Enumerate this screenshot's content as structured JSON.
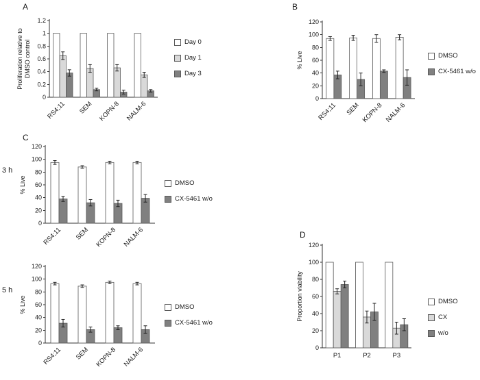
{
  "figure_labels": {
    "panel_a": "A",
    "panel_b": "B",
    "panel_c": "C",
    "panel_d": "D",
    "time_3h": "3 h",
    "time_5h": "5 h"
  },
  "colors": {
    "white_bar": "#ffffff",
    "light_bar": "#d9d9d9",
    "dark_bar": "#808080",
    "bar_border": "#595959",
    "axis": "#333333",
    "error_bar": "#222222",
    "text": "#1a1a1a"
  },
  "chart_data": [
    {
      "id": "panel-a",
      "type": "bar",
      "title": "",
      "ylabel": "Proliferation relative to DMSO control",
      "ylim": [
        0,
        1.2
      ],
      "ytick": 0.2,
      "grid": false,
      "legend_position": "right",
      "rotate_x_labels": true,
      "categories": [
        "RS4;11",
        "SEM",
        "KOPN-8",
        "NALM-6"
      ],
      "series": [
        {
          "name": "Day 0",
          "fill": "white_bar",
          "values": [
            1,
            1,
            1,
            1
          ],
          "errors": [
            0,
            0,
            0,
            0
          ]
        },
        {
          "name": "Day 1",
          "fill": "light_bar",
          "values": [
            0.65,
            0.45,
            0.46,
            0.35
          ],
          "errors": [
            0.06,
            0.06,
            0.05,
            0.04
          ]
        },
        {
          "name": "Day 3",
          "fill": "dark_bar",
          "values": [
            0.38,
            0.12,
            0.08,
            0.1
          ],
          "errors": [
            0.05,
            0.02,
            0.03,
            0.02
          ]
        }
      ]
    },
    {
      "id": "panel-b",
      "type": "bar",
      "title": "",
      "ylabel": "% Live",
      "ylim": [
        0,
        120
      ],
      "ytick": 20,
      "grid": false,
      "legend_position": "right",
      "rotate_x_labels": true,
      "categories": [
        "RS4;11",
        "SEM",
        "KOPN-8",
        "NALM-6"
      ],
      "series": [
        {
          "name": "DMSO",
          "fill": "white_bar",
          "values": [
            94,
            95,
            94,
            96
          ],
          "errors": [
            3,
            4,
            6,
            4
          ]
        },
        {
          "name": "CX-5461 w/o",
          "fill": "dark_bar",
          "values": [
            37,
            30,
            43,
            33
          ],
          "errors": [
            6,
            10,
            2,
            12
          ]
        }
      ]
    },
    {
      "id": "panel-c-3h",
      "type": "bar",
      "title": "",
      "ylabel": "% Live",
      "ylim": [
        0,
        120
      ],
      "ytick": 20,
      "grid": false,
      "legend_position": "right",
      "rotate_x_labels": true,
      "categories": [
        "RS4;11",
        "SEM",
        "KOPN-8",
        "NALM-6"
      ],
      "series": [
        {
          "name": "DMSO",
          "fill": "white_bar",
          "values": [
            95,
            88,
            95,
            95
          ],
          "errors": [
            3,
            2,
            2,
            2
          ]
        },
        {
          "name": "CX-5461 w/o",
          "fill": "dark_bar",
          "values": [
            38,
            32,
            31,
            39
          ],
          "errors": [
            4,
            5,
            5,
            6
          ]
        }
      ]
    },
    {
      "id": "panel-c-5h",
      "type": "bar",
      "title": "",
      "ylabel": "% Live",
      "ylim": [
        0,
        120
      ],
      "ytick": 20,
      "grid": false,
      "legend_position": "right",
      "rotate_x_labels": true,
      "categories": [
        "RS4;11",
        "SEM",
        "KOPN-8",
        "NALM-6"
      ],
      "series": [
        {
          "name": "DMSO",
          "fill": "white_bar",
          "values": [
            93,
            89,
            95,
            93
          ],
          "errors": [
            2,
            2,
            2,
            2
          ]
        },
        {
          "name": "CX-5461 w/o",
          "fill": "dark_bar",
          "values": [
            31,
            21,
            24,
            21
          ],
          "errors": [
            6,
            4,
            3,
            6
          ]
        }
      ]
    },
    {
      "id": "panel-d",
      "type": "bar",
      "title": "",
      "ylabel": "Proportion viability",
      "ylim": [
        0,
        120
      ],
      "ytick": 20,
      "grid": false,
      "legend_position": "right",
      "rotate_x_labels": false,
      "categories": [
        "P1",
        "P2",
        "P3"
      ],
      "series": [
        {
          "name": "DMSO",
          "fill": "white_bar",
          "values": [
            100,
            100,
            100
          ],
          "errors": [
            0,
            0,
            0
          ]
        },
        {
          "name": "CX",
          "fill": "light_bar",
          "values": [
            66,
            36,
            23
          ],
          "errors": [
            3,
            7,
            7
          ]
        },
        {
          "name": "w/o",
          "fill": "dark_bar",
          "values": [
            74,
            42,
            27
          ],
          "errors": [
            4,
            10,
            7
          ]
        }
      ]
    }
  ]
}
